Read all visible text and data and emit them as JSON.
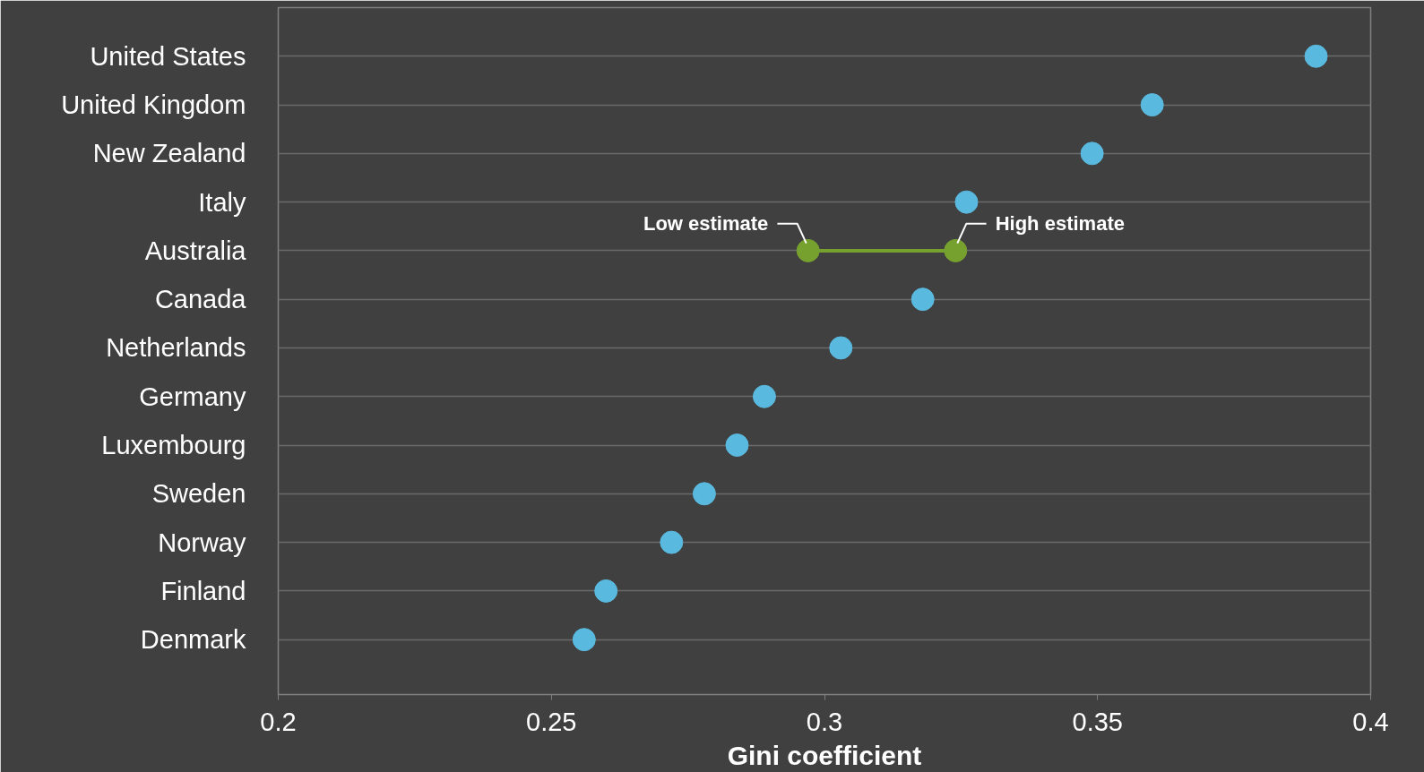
{
  "chart_data": {
    "type": "scatter",
    "orientation": "horizontal",
    "xlabel": "Gini coefficient",
    "categories": [
      "United States",
      "United Kingdom",
      "New Zealand",
      "Italy",
      "Australia",
      "Canada",
      "Netherlands",
      "Germany",
      "Luxembourg",
      "Sweden",
      "Norway",
      "Finland",
      "Denmark"
    ],
    "series": [
      {
        "color": "#5ab9de",
        "values": [
          0.39,
          0.36,
          0.349,
          0.326,
          null,
          0.318,
          0.303,
          0.289,
          0.284,
          0.278,
          0.272,
          0.26,
          0.256
        ]
      },
      {
        "type": "line",
        "color": "#77a12f",
        "x": [
          "Australia",
          "Australia"
        ],
        "values": [
          0.297,
          0.324
        ]
      }
    ],
    "xlim": [
      0.2,
      0.4
    ],
    "xticks": [
      0.2,
      0.25,
      0.3,
      0.35,
      0.4
    ],
    "grid": "y",
    "marker": "circle",
    "annotations": [
      {
        "text": "Low estimate",
        "x": 0.297,
        "y": "Australia"
      },
      {
        "text": "High  estimate",
        "x": 0.324,
        "y": "Australia"
      }
    ]
  }
}
